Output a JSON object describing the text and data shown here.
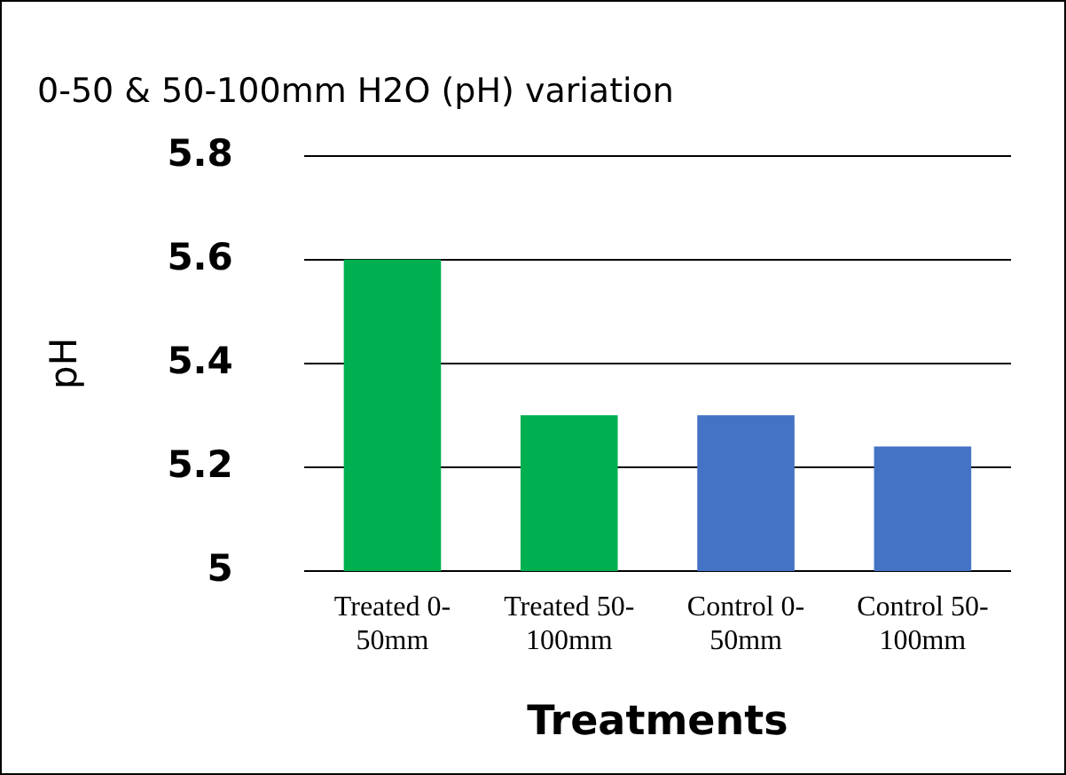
{
  "chart_data": {
    "type": "bar",
    "title": "0-50 & 50-100mm H2O (pH) variation",
    "categories": [
      "Treated 0-50mm",
      "Treated 50-100mm",
      "Control 0-50mm",
      "Control 50-100mm"
    ],
    "values": [
      5.6,
      5.3,
      5.3,
      5.24
    ],
    "colors": [
      "#00b050",
      "#00b050",
      "#4472c4",
      "#4472c4"
    ],
    "xlabel": "Treatments",
    "ylabel": "pH",
    "ylim": [
      5,
      5.8
    ],
    "yticks": [
      {
        "value": 5,
        "label": "5"
      },
      5.2,
      5.4,
      5.6,
      5.8
    ],
    "grid": "y",
    "legend": false
  }
}
